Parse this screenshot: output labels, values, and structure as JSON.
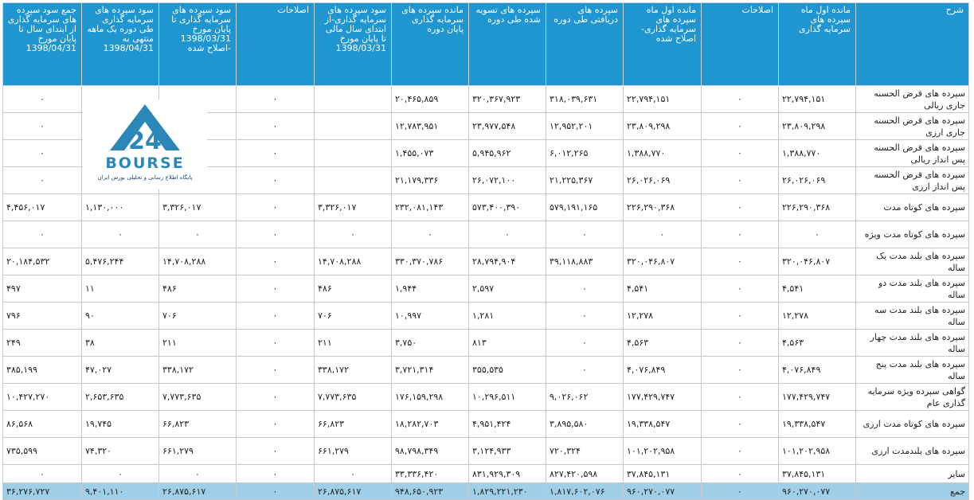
{
  "headers": [
    "شرح",
    "مانده اول ماه سپرده های سرمایه گذاری",
    "اصلاحات",
    "مانده اول ماه سپرده های سرمایه گذاری-اصلاح شده",
    "سپرده های دریافتی طی دوره",
    "سپرده های تسویه شده طی دوره",
    "مانده سپرده های سرمایه گذاری پایان دوره",
    "سود سپرده های سرمایه گذاری-از ابتدای سال مالی تا پایان مورخ 1398/03/31",
    "اصلاحات",
    "سود سپرده های سرمایه گذاری تا پایان مورخ 1398/03/31 -اصلاح شده",
    "سود سپرده های سرمایه گذاری طی دوره یک ماهه منتهی به 1398/04/31",
    "جمع سود سپرده های سرمایه گذاری از ابتدای سال تا پایان مورخ 1398/04/31"
  ],
  "rows": [
    [
      "سپرده های قرض الحسنه جاری ریالی",
      "۲۲,۷۹۴,۱۵۱",
      "۰",
      "۲۲,۷۹۴,۱۵۱",
      "۳۱۸,۰۳۹,۶۳۱",
      "۳۲۰,۳۶۷,۹۲۳",
      "۲۰,۴۶۵,۸۵۹",
      "",
      "۰",
      "",
      "",
      "۰"
    ],
    [
      "سپرده های قرض الحسنه جاری ارزی",
      "۲۳,۸۰۹,۲۹۸",
      "۰",
      "۲۳,۸۰۹,۲۹۸",
      "۱۲,۹۵۲,۲۰۱",
      "۲۳,۹۷۷,۵۴۸",
      "۱۲,۷۸۳,۹۵۱",
      "",
      "۰",
      "",
      "",
      "۰"
    ],
    [
      "سپرده های قرض الحسنه پس انداز ریالی",
      "۱,۳۸۸,۷۷۰",
      "۰",
      "۱,۳۸۸,۷۷۰",
      "۶,۰۱۲,۲۶۵",
      "۵,۹۴۵,۹۶۲",
      "۱,۴۵۵,۰۷۳",
      "",
      "۰",
      "",
      "",
      "۰"
    ],
    [
      "سپرده های قرض الحسنه پس انداز ارزی",
      "۲۶,۰۲۶,۰۶۹",
      "۰",
      "۲۶,۰۲۶,۰۶۹",
      "۲۱,۲۲۵,۳۶۷",
      "۲۶,۰۷۲,۱۰۰",
      "۲۱,۱۷۹,۳۳۶",
      "",
      "۰",
      "",
      "",
      "۰"
    ],
    [
      "سپرده های کوتاه مدت",
      "۲۲۶,۲۹۰,۳۶۸",
      "۰",
      "۲۲۶,۲۹۰,۳۶۸",
      "۵۷۹,۱۹۱,۱۶۵",
      "۵۷۳,۴۰۰,۳۹۰",
      "۲۳۲,۰۸۱,۱۴۳",
      "۳,۳۲۶,۰۱۷",
      "۰",
      "۳,۳۲۶,۰۱۷",
      "۱,۱۳۰,۰۰۰",
      "۴,۴۵۶,۰۱۷"
    ],
    [
      "سپرده های کوتاه مدت ویژه",
      "۰",
      "۰",
      "۰",
      "۰",
      "۰",
      "۰",
      "۰",
      "۰",
      "۰",
      "۰",
      "۰"
    ],
    [
      "سپرده های بلند مدت یک ساله",
      "۳۲۰,۰۴۶,۸۰۷",
      "۰",
      "۳۲۰,۰۴۶,۸۰۷",
      "۳۹,۱۱۸,۸۸۳",
      "۲۸,۷۹۴,۹۰۴",
      "۳۳۰,۳۷۰,۷۸۶",
      "۱۴,۷۰۸,۲۸۸",
      "۰",
      "۱۴,۷۰۸,۲۸۸",
      "۵,۴۷۶,۲۴۴",
      "۲۰,۱۸۴,۵۳۲"
    ],
    [
      "سپرده های بلند مدت دو ساله",
      "۴,۵۴۱",
      "۰",
      "۴,۵۴۱",
      "۰",
      "۲,۵۹۷",
      "۱,۹۴۴",
      "۴۸۶",
      "۰",
      "۴۸۶",
      "۱۱",
      "۴۹۷"
    ],
    [
      "سپرده های بلند مدت سه ساله",
      "۱۲,۲۷۸",
      "۰",
      "۱۲,۲۷۸",
      "۰",
      "۱,۲۸۱",
      "۱۰,۹۹۷",
      "۷۰۶",
      "۰",
      "۷۰۶",
      "۹۰",
      "۷۹۶"
    ],
    [
      "سپرده های بلند مدت چهار ساله",
      "۴,۵۶۳",
      "۰",
      "۴,۵۶۳",
      "۰",
      "۸۱۳",
      "۳,۷۵۰",
      "۲۱۱",
      "۰",
      "۲۱۱",
      "۳۸",
      "۲۴۹"
    ],
    [
      "سپرده های بلند مدت پنج ساله",
      "۴,۰۷۶,۸۴۹",
      "۰",
      "۴,۰۷۶,۸۴۹",
      "۰",
      "۳۵۵,۵۳۵",
      "۳,۷۲۱,۳۱۴",
      "۳۳۸,۱۷۲",
      "۰",
      "۳۳۸,۱۷۲",
      "۴۷,۰۲۷",
      "۳۸۵,۱۹۹"
    ],
    [
      "گواهی سپرده ویژه سرمایه گذاری عام",
      "۱۷۷,۴۲۹,۷۴۷",
      "۰",
      "۱۷۷,۴۲۹,۷۴۷",
      "۹,۰۲۶,۰۶۲",
      "۱۰,۲۹۶,۵۱۱",
      "۱۷۶,۱۵۹,۲۹۸",
      "۷,۷۷۳,۶۳۵",
      "۰",
      "۷,۷۷۳,۶۳۵",
      "۲,۶۵۳,۶۳۵",
      "۱۰,۴۲۷,۲۷۰"
    ],
    [
      "سپرده های کوتاه مدت ارزی",
      "۱۹,۳۳۸,۵۴۷",
      "۰",
      "۱۹,۳۳۸,۵۴۷",
      "۳,۸۹۵,۵۸۰",
      "۴,۹۵۱,۴۲۴",
      "۱۸,۲۸۲,۷۰۳",
      "۶۶,۸۲۳",
      "۰",
      "۶۶,۸۲۳",
      "۱۹,۷۴۵",
      "۸۶,۵۶۸"
    ],
    [
      "سپرده های بلندمدت ارزی",
      "۱۰۱,۲۰۲,۹۵۸",
      "۰",
      "۱۰۱,۲۰۲,۹۵۸",
      "۷۲۰,۳۲۴",
      "۳,۱۲۴,۹۳۳",
      "۹۸,۷۹۸,۳۴۹",
      "۶۶۱,۲۷۹",
      "۰",
      "۶۶۱,۲۷۹",
      "۷۴,۳۲۰",
      "۷۳۵,۵۹۹"
    ],
    [
      "سایر",
      "۳۷,۸۴۵,۱۳۱",
      "۰",
      "۳۷,۸۴۵,۱۳۱",
      "۸۲۷,۴۲۰,۵۹۸",
      "۸۳۱,۹۲۹,۳۰۹",
      "۳۳,۳۳۶,۴۲۰",
      "۰",
      "۰",
      "۰",
      "۰",
      "۰"
    ]
  ],
  "total": [
    "جمع",
    "۹۶۰,۲۷۰,۰۷۷",
    "۰",
    "۹۶۰,۲۷۰,۰۷۷",
    "۱,۸۱۷,۶۰۲,۰۷۶",
    "۱,۸۲۹,۲۲۱,۲۳۰",
    "۹۴۸,۶۵۰,۹۲۳",
    "۲۶,۸۷۵,۶۱۷",
    "۰",
    "۲۶,۸۷۵,۶۱۷",
    "۹,۴۰۱,۱۱۰",
    "۳۶,۲۷۶,۷۲۷"
  ],
  "logo": {
    "mark": "24",
    "brand": "BOURSE",
    "tagline": "پایگاه اطلاع رسانی و تحلیلی بورس ایران",
    "color": "#2b87b8"
  },
  "colors": {
    "header_bg": "#1f96cf",
    "total_bg": "#9ecfe6",
    "border": "#c9c9c9"
  }
}
